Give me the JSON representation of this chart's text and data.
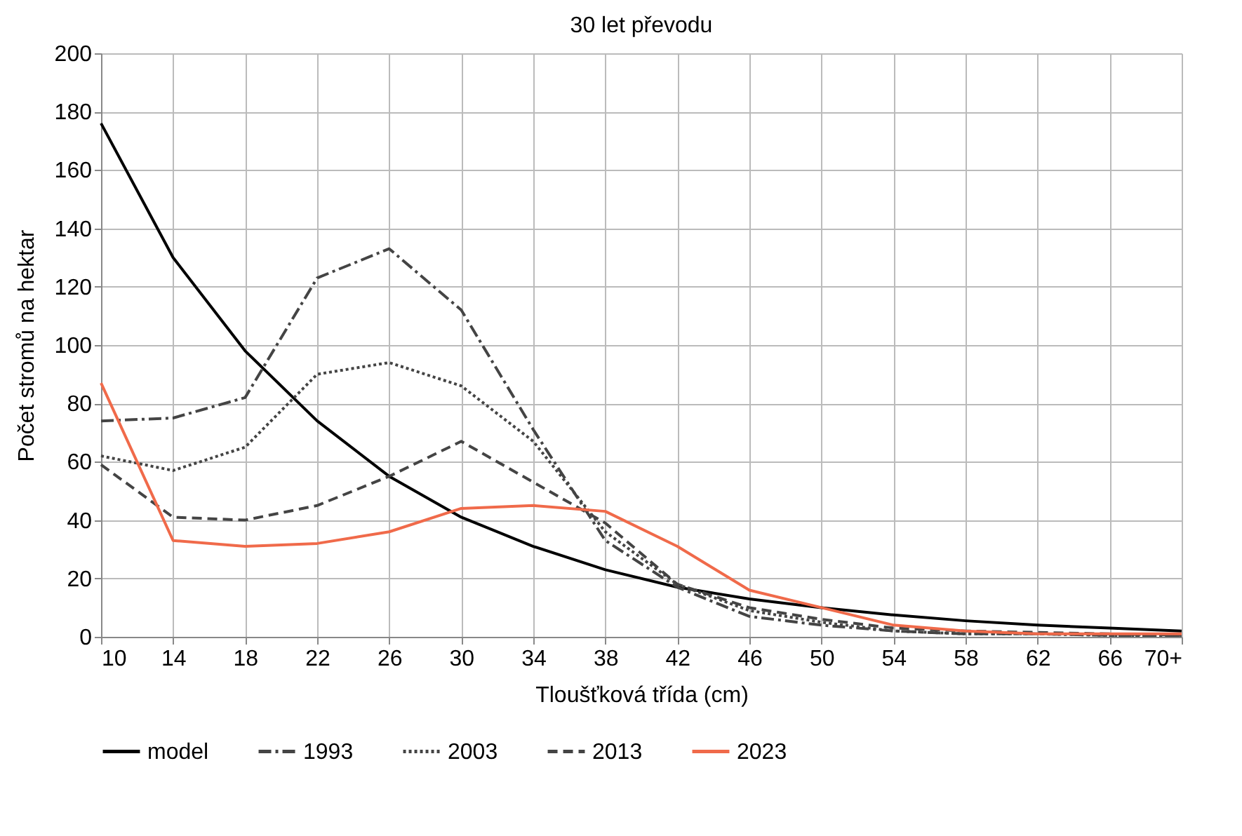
{
  "chart_data": {
    "type": "line",
    "title": "30 let převodu",
    "xlabel": "Tloušťková třída (cm)",
    "ylabel": "Počet stromů na hektar",
    "categories": [
      "10",
      "14",
      "18",
      "22",
      "26",
      "30",
      "34",
      "38",
      "42",
      "46",
      "50",
      "54",
      "58",
      "62",
      "66",
      "70+"
    ],
    "ylim": [
      0,
      200
    ],
    "yticks": [
      0,
      20,
      40,
      60,
      80,
      100,
      120,
      140,
      160,
      180,
      200
    ],
    "grid": true,
    "legend": "bottom",
    "marker": "none",
    "series": [
      {
        "name": "model",
        "color": "#000000",
        "line_style": "solid",
        "values": [
          176,
          130,
          98,
          74,
          55,
          41,
          31,
          23,
          17,
          13,
          10,
          7.5,
          5.5,
          4,
          3,
          2
        ]
      },
      {
        "name": "1993",
        "color": "#444444",
        "line_style": "dashdot",
        "values": [
          74,
          75,
          82,
          123,
          133,
          112,
          71,
          33,
          17,
          7,
          4,
          2,
          1,
          1,
          0.5,
          0.5
        ]
      },
      {
        "name": "2003",
        "color": "#444444",
        "line_style": "dotted",
        "values": [
          62,
          57,
          65,
          90,
          94,
          86,
          67,
          36,
          18,
          9,
          5,
          2,
          1,
          1,
          0.5,
          0.5
        ]
      },
      {
        "name": "2013",
        "color": "#444444",
        "line_style": "dashed",
        "values": [
          59,
          41,
          40,
          45,
          55,
          67,
          53,
          39,
          18,
          10,
          6,
          3,
          2,
          1.5,
          1,
          0.5
        ]
      },
      {
        "name": "2023",
        "color": "#f06a4a",
        "line_style": "solid",
        "values": [
          87,
          33,
          31,
          32,
          36,
          44,
          45,
          43,
          31,
          16,
          10,
          4,
          2,
          1,
          1,
          1
        ]
      }
    ]
  }
}
